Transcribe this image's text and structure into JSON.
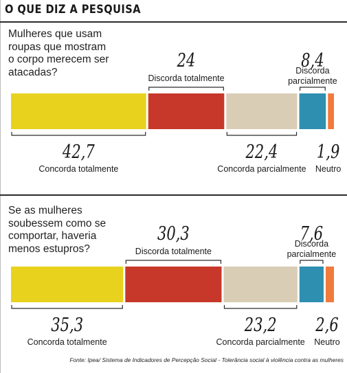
{
  "heading": "O QUE DIZ A PESQUISA",
  "source": "Fonte: Ipea/ Sistema de Indicadores de Percepção Social - Tolerância social à violência contra as mulheres",
  "chart_data": [
    {
      "type": "bar",
      "orientation": "horizontal-stacked",
      "question_lines": [
        "Mulheres que usam",
        "roupas que mostram",
        "o corpo merecem ser",
        "atacadas?"
      ],
      "series": [
        {
          "name": "Concorda totalmente",
          "value": 42.7,
          "label": "42,7",
          "color": "#e9d21e"
        },
        {
          "name": "Discorda totalmente",
          "value": 24,
          "label": "24",
          "color": "#c7382a"
        },
        {
          "name": "Concorda parcialmente",
          "value": 22.4,
          "label": "22,4",
          "color": "#d9cdb6"
        },
        {
          "name": "Discorda parcialmente",
          "name_lines": [
            "Discorda",
            "parcialmente"
          ],
          "value": 8.4,
          "label": "8,4",
          "color": "#2e8fb1"
        },
        {
          "name": "Neutro",
          "value": 1.9,
          "label": "1,9",
          "color": "#f07b3c"
        }
      ]
    },
    {
      "type": "bar",
      "orientation": "horizontal-stacked",
      "question_lines": [
        "Se as mulheres",
        "soubessem como se",
        "comportar, haveria",
        "menos estupros?"
      ],
      "series": [
        {
          "name": "Concorda totalmente",
          "value": 35.3,
          "label": "35,3",
          "color": "#e9d21e"
        },
        {
          "name": "Discorda totalmente",
          "value": 30.3,
          "label": "30,3",
          "color": "#c7382a"
        },
        {
          "name": "Concorda parcialmente",
          "value": 23.2,
          "label": "23,2",
          "color": "#d9cdb6"
        },
        {
          "name": "Discorda parcialmente",
          "name_lines": [
            "Discorda",
            "parcialmente"
          ],
          "value": 7.6,
          "label": "7,6",
          "color": "#2e8fb1"
        },
        {
          "name": "Neutro",
          "value": 2.6,
          "label": "2,6",
          "color": "#f07b3c"
        }
      ]
    }
  ]
}
